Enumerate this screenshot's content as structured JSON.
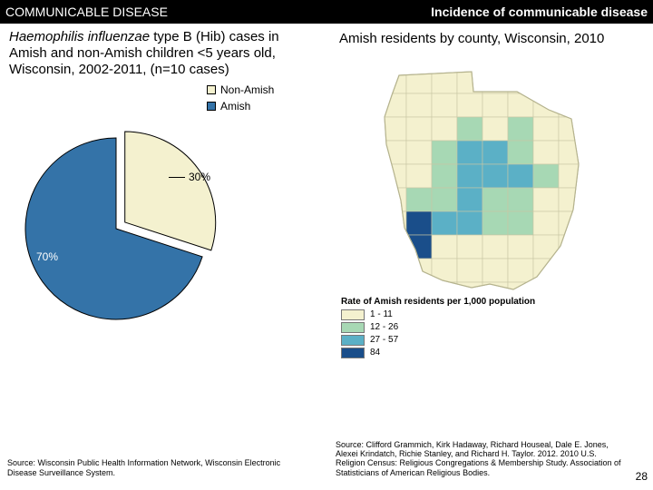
{
  "header": {
    "left": "COMMUNICABLE DISEASE",
    "right": "Incidence of communicable disease"
  },
  "left": {
    "species": "Haemophilis influenzae",
    "rest1": " type B (Hib) cases in Amish and non-Amish children <5 years old, Wisconsin, 2002-2011, (n=10 cases)",
    "pie": {
      "slices": [
        {
          "label": "Non-Amish",
          "value": 30,
          "color": "#f4f1cf",
          "text_color": "#000000"
        },
        {
          "label": "Amish",
          "value": 70,
          "color": "#3473a8",
          "text_color": "#ffffff"
        }
      ],
      "radius": 100,
      "explode_gap": 12,
      "outline": "#000000",
      "label_fontsize": 12
    },
    "source": "Source: Wisconsin Public Health Information Network, Wisconsin Electronic Disease Surveillance System."
  },
  "right": {
    "heading": "Amish residents by county, Wisconsin, 2010",
    "map": {
      "state_fill": "#f2f0d7",
      "state_stroke": "#b5b38e",
      "county_stroke": "#c9c7a4",
      "colors": {
        "c1": "#f4f1cf",
        "c2": "#a7d8b4",
        "c3": "#5bb0c6",
        "c4": "#1a4e8a"
      },
      "legend_title": "Rate of Amish residents per 1,000 population",
      "legend_rows": [
        {
          "swatch": "#f4f1cf",
          "label": "1 - 11"
        },
        {
          "swatch": "#a7d8b4",
          "label": "12 - 26"
        },
        {
          "swatch": "#5bb0c6",
          "label": "27 - 57"
        },
        {
          "swatch": "#1a4e8a",
          "label": "84"
        }
      ]
    },
    "source": "Source: Clifford Grammich, Kirk Hadaway, Richard Houseal, Dale E. Jones, Alexei Krindatch, Richie Stanley, and Richard H. Taylor. 2012. 2010 U.S. Religion Census: Religious Congregations & Membership Study. Association of Statisticians of American Religious Bodies."
  },
  "page_number": "28"
}
